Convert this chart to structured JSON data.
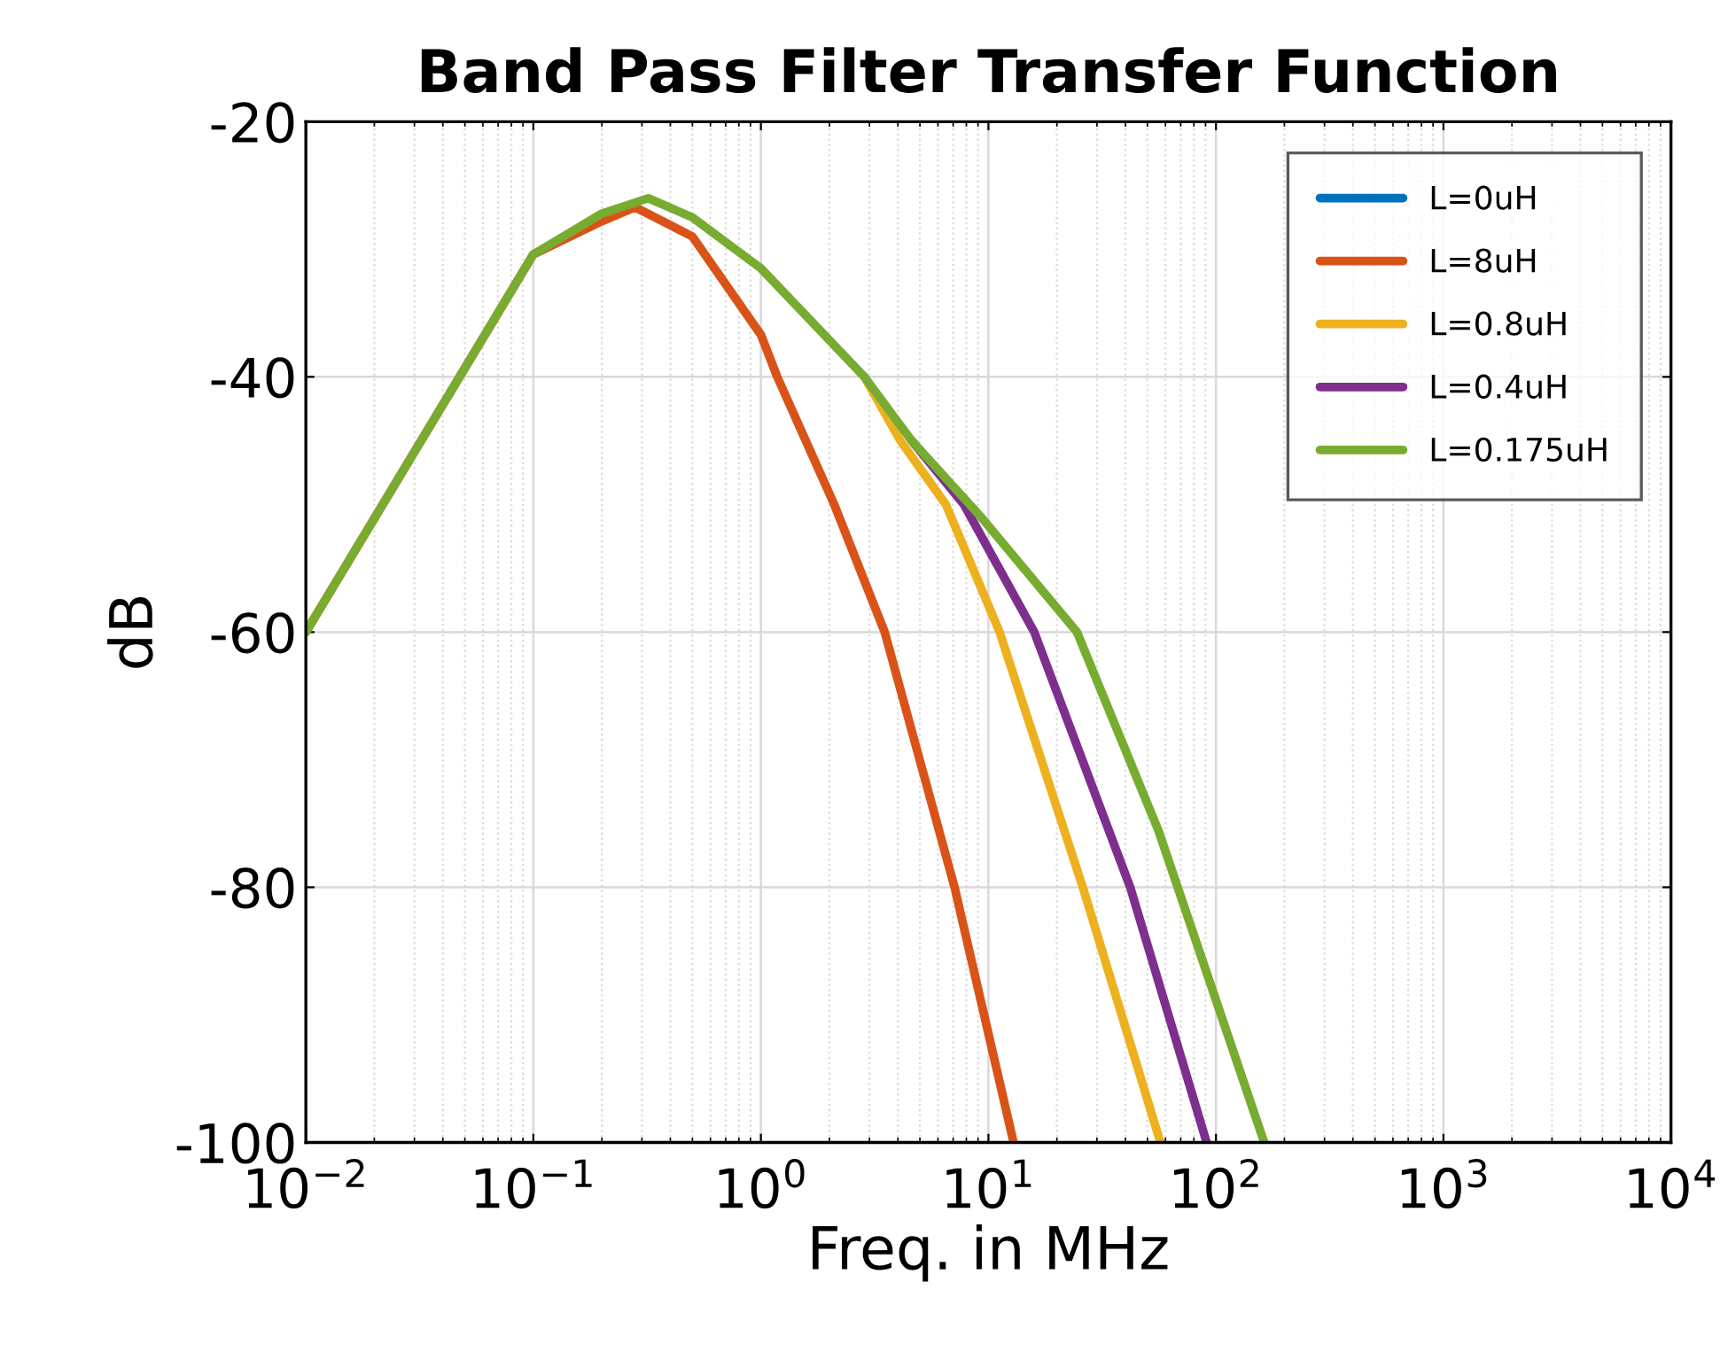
{
  "chart_data": {
    "type": "line",
    "title": "Band Pass Filter Transfer Function",
    "xlabel": "Freq. in MHz",
    "ylabel": "dB",
    "log": "x",
    "grid": true,
    "legend": "top right",
    "line_style": "solid",
    "marker": "none",
    "xlim": [
      0.01,
      10000
    ],
    "ylim": [
      -100,
      -20
    ],
    "xticks": [
      {
        "value": 0.01,
        "label": "10$^{−2}$"
      },
      {
        "value": 0.1,
        "label": "10$^{−1}$"
      },
      {
        "value": 1,
        "label": "10$^{0}$"
      },
      {
        "value": 10,
        "label": "10$^{1}$"
      },
      {
        "value": 100,
        "label": "10$^{2}$"
      },
      {
        "value": 1000,
        "label": "10$^{3}$"
      },
      {
        "value": 10000,
        "label": "10$^{4}$"
      }
    ],
    "yticks": [
      -100,
      -80,
      -60,
      -40,
      -20
    ],
    "series": [
      {
        "name": "L=0uH",
        "color": "#0072bd"
      },
      {
        "name": "L=8uH",
        "color": "#d95319",
        "x": [
          0.01,
          0.1,
          0.2,
          0.28,
          0.5,
          1,
          1.18,
          2.1,
          3.5,
          7.1,
          12.9
        ],
        "values": [
          -60,
          -30.4,
          -27.8,
          -26.7,
          -29,
          -36.7,
          -40,
          -50,
          -60,
          -80,
          -100
        ]
      },
      {
        "name": "L=0.8uH",
        "color": "#edb120",
        "x": [
          2.85,
          4.1,
          6.5,
          11.2,
          26,
          57
        ],
        "values": [
          -40,
          -45,
          -50,
          -60,
          -80,
          -100
        ]
      },
      {
        "name": "L=0.4uH",
        "color": "#7e2f8e",
        "x": [
          4.6,
          7.8,
          15.9,
          42,
          91
        ],
        "values": [
          -45,
          -50,
          -60,
          -80,
          -100
        ]
      },
      {
        "name": "L=0.175uH",
        "color": "#77ac30",
        "x": [
          0.01,
          0.1,
          0.2,
          0.32,
          0.5,
          1,
          2.85,
          4.6,
          9.3,
          24.5,
          56,
          163
        ],
        "values": [
          -60,
          -30.4,
          -27.2,
          -26,
          -27.5,
          -31.5,
          -40,
          -45,
          -51,
          -60,
          -75.6,
          -100
        ]
      }
    ]
  }
}
